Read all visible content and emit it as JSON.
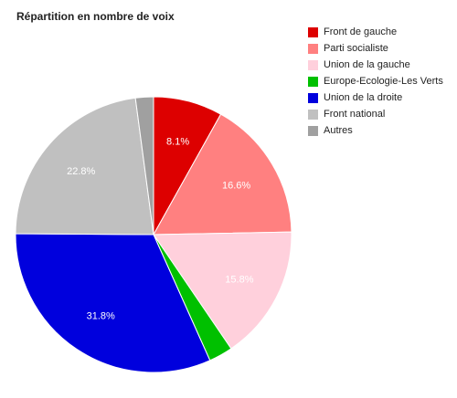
{
  "chart_data": {
    "type": "pie",
    "title": "Répartition en nombre de voix",
    "legend_position": "right",
    "slices": [
      {
        "name": "Front de gauche",
        "value": 8.1,
        "label": "8.1%",
        "color": "#dd0000"
      },
      {
        "name": "Parti socialiste",
        "value": 16.6,
        "label": "16.6%",
        "color": "#ff8080"
      },
      {
        "name": "Union de la gauche",
        "value": 15.8,
        "label": "15.8%",
        "color": "#ffd0dc"
      },
      {
        "name": "Europe-Ecologie-Les Verts",
        "value": 2.8,
        "label": "",
        "color": "#00c000"
      },
      {
        "name": "Union de la droite",
        "value": 31.8,
        "label": "31.8%",
        "color": "#0000dd"
      },
      {
        "name": "Front national",
        "value": 22.8,
        "label": "22.8%",
        "color": "#c0c0c0"
      },
      {
        "name": "Autres",
        "value": 2.1,
        "label": "",
        "color": "#a0a0a0"
      }
    ]
  }
}
